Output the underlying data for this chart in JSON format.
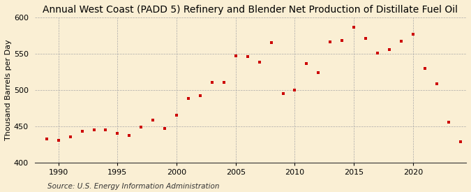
{
  "title": "Annual West Coast (PADD 5) Refinery and Blender Net Production of Distillate Fuel Oil",
  "ylabel": "Thousand Barrels per Day",
  "source": "Source: U.S. Energy Information Administration",
  "background_color": "#faefd4",
  "marker_color": "#cc0000",
  "years": [
    1989,
    1990,
    1991,
    1992,
    1993,
    1994,
    1995,
    1996,
    1997,
    1998,
    1999,
    2000,
    2001,
    2002,
    2003,
    2004,
    2005,
    2006,
    2007,
    2008,
    2009,
    2010,
    2011,
    2012,
    2013,
    2014,
    2015,
    2016,
    2017,
    2018,
    2019,
    2020,
    2021,
    2022,
    2023,
    2024
  ],
  "values": [
    432,
    430,
    435,
    443,
    445,
    445,
    440,
    437,
    449,
    458,
    447,
    465,
    488,
    492,
    510,
    510,
    547,
    546,
    538,
    565,
    495,
    500,
    536,
    524,
    566,
    568,
    586,
    571,
    551,
    556,
    567,
    577,
    530,
    508,
    455,
    428
  ],
  "xlim": [
    1988.0,
    2024.5
  ],
  "ylim": [
    400,
    600
  ],
  "yticks": [
    400,
    450,
    500,
    550,
    600
  ],
  "xticks": [
    1990,
    1995,
    2000,
    2005,
    2010,
    2015,
    2020
  ],
  "grid_color": "#aaaaaa",
  "title_fontsize": 10,
  "label_fontsize": 8,
  "tick_fontsize": 8,
  "source_fontsize": 7.5
}
